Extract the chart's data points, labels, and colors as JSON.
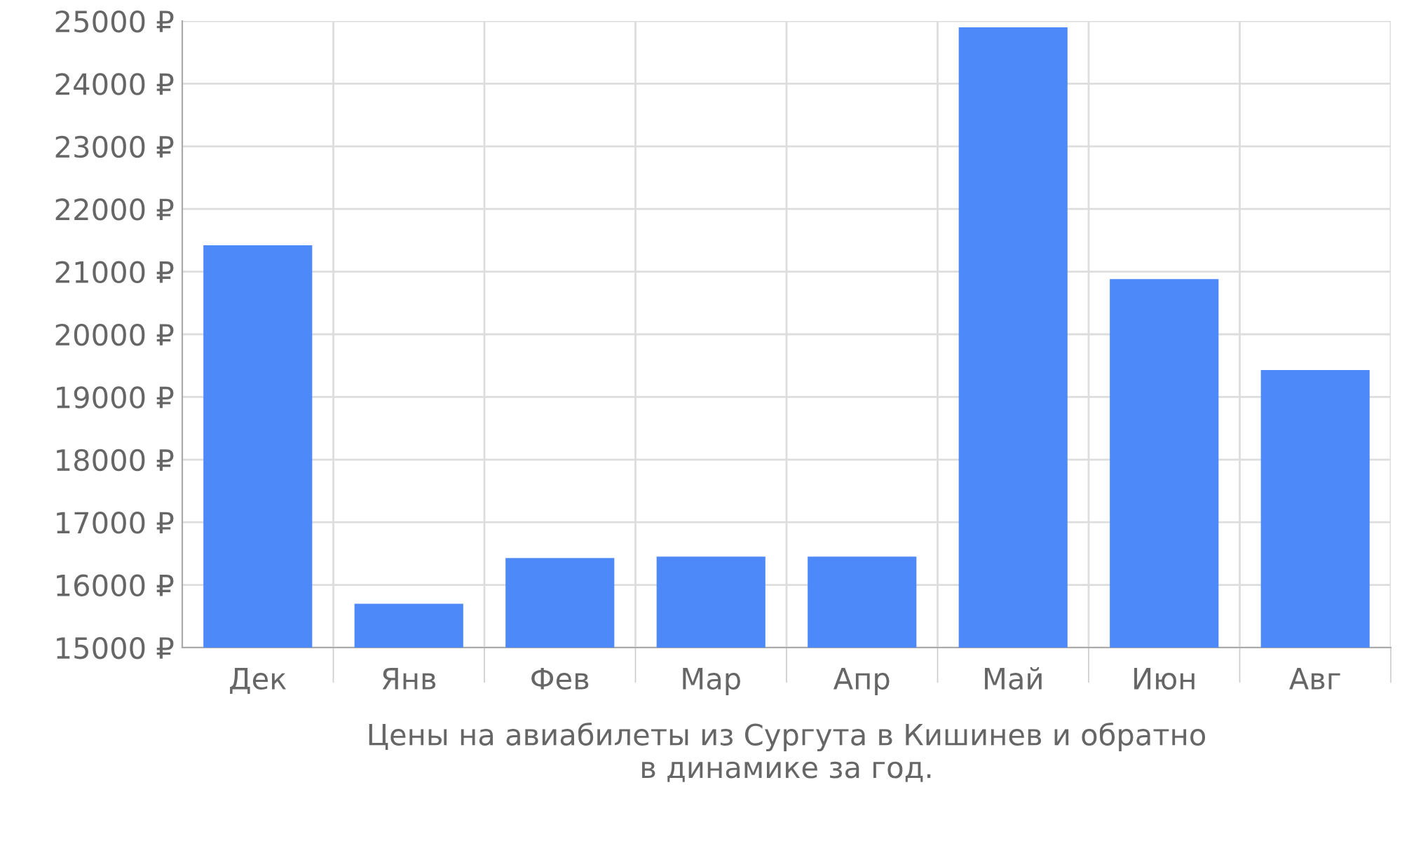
{
  "chart_data": {
    "type": "bar",
    "xlabel": "Цены на авиабилеты из Сургута в Кишинев и обратно\nв динамике за год.",
    "categories": [
      "Дек",
      "Янв",
      "Фев",
      "Мар",
      "Апр",
      "Май",
      "Июн",
      "Авг"
    ],
    "values": [
      21420,
      15700,
      16430,
      16450,
      16450,
      24900,
      20880,
      19430
    ],
    "color": "#4d89f9",
    "ylim": [
      15000,
      25000
    ],
    "yticks": [
      {
        "value": 15000,
        "label": "15000 ₽"
      },
      {
        "value": 16000,
        "label": "16000 ₽"
      },
      {
        "value": 17000,
        "label": "17000 ₽"
      },
      {
        "value": 18000,
        "label": "18000 ₽"
      },
      {
        "value": 19000,
        "label": "19000 ₽"
      },
      {
        "value": 20000,
        "label": "20000 ₽"
      },
      {
        "value": 21000,
        "label": "21000 ₽"
      },
      {
        "value": 22000,
        "label": "22000 ₽"
      },
      {
        "value": 23000,
        "label": "23000 ₽"
      },
      {
        "value": 24000,
        "label": "24000 ₽"
      },
      {
        "value": 25000,
        "label": "25000 ₽"
      }
    ],
    "grid": true
  }
}
